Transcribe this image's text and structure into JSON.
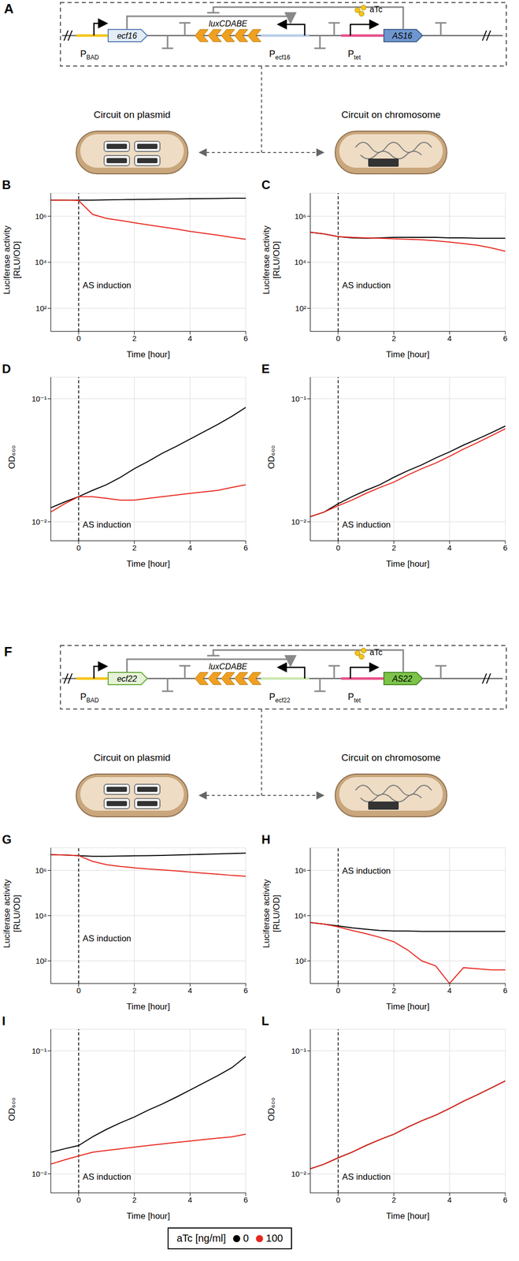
{
  "diagrams": [
    {
      "panel": "A",
      "pbad": [
        "P",
        "BAD"
      ],
      "sigma": "ecf16",
      "reporter": "luxCDABE",
      "psigma": [
        "P",
        "ecf16"
      ],
      "inducer": "aTc",
      "ptet": [
        "P",
        "tet"
      ],
      "anti_sigma": "AS16",
      "left_label": "Circuit on plasmid",
      "right_label": "Circuit on chromosome"
    },
    {
      "panel": "F",
      "pbad": [
        "P",
        "BAD"
      ],
      "sigma": "ecf22",
      "reporter": "luxCDABE",
      "psigma": [
        "P",
        "ecf22"
      ],
      "inducer": "aTc",
      "ptet": [
        "P",
        "tet"
      ],
      "anti_sigma": "AS22",
      "left_label": "Circuit on plasmid",
      "right_label": "Circuit on chromosome"
    }
  ],
  "legend": {
    "title": "aTc [ng/ml]"
  },
  "chart_data": [
    {
      "panel": "B",
      "type": "line",
      "x_label": "Time [hour]",
      "y_label": [
        "Luciferase activity",
        "[RLU/OD]"
      ],
      "log": "y",
      "grid": true,
      "xlim": [
        -1,
        6
      ],
      "xticks": [
        0,
        2,
        4,
        6
      ],
      "ylim": [
        10,
        10000000
      ],
      "yticks": [
        {
          "value": 100,
          "label": "10²"
        },
        {
          "value": 10000,
          "label": "10⁴"
        },
        {
          "value": 1000000,
          "label": "10⁶"
        }
      ],
      "x": [
        -1,
        -0.5,
        0,
        0.5,
        1,
        1.5,
        2,
        2.5,
        3,
        3.5,
        4,
        4.5,
        5,
        5.5,
        6
      ],
      "series": [
        {
          "name": "0",
          "color": "#000000",
          "values": [
            5000000,
            5000000,
            5000000,
            5000000,
            5100000,
            5200000,
            5300000,
            5400000,
            5500000,
            5600000,
            5700000,
            5800000,
            5900000,
            6000000,
            6000000
          ]
        },
        {
          "name": "100",
          "color": "#e8261c",
          "values": [
            5000000,
            5000000,
            4800000,
            1200000,
            800000,
            650000,
            520000,
            420000,
            340000,
            280000,
            220000,
            180000,
            150000,
            120000,
            100000
          ]
        }
      ],
      "annotations": [
        {
          "text": "AS induction",
          "x": 0,
          "y": 1000
        }
      ]
    },
    {
      "panel": "C",
      "type": "line",
      "x_label": "Time [hour]",
      "y_label": [
        "Luciferase activity",
        "[RLU/OD]"
      ],
      "log": "y",
      "grid": true,
      "xlim": [
        -1,
        6
      ],
      "xticks": [
        0,
        2,
        4,
        6
      ],
      "ylim": [
        10,
        10000000
      ],
      "yticks": [
        {
          "value": 100,
          "label": "10²"
        },
        {
          "value": 10000,
          "label": "10⁴"
        },
        {
          "value": 1000000,
          "label": "10⁶"
        }
      ],
      "x": [
        -1,
        -0.5,
        0,
        0.5,
        1,
        1.5,
        2,
        2.5,
        3,
        3.5,
        4,
        4.5,
        5,
        5.5,
        6
      ],
      "series": [
        {
          "name": "0",
          "color": "#000000",
          "values": [
            200000,
            170000,
            130000,
            115000,
            110000,
            115000,
            120000,
            120000,
            120000,
            120000,
            115000,
            115000,
            110000,
            110000,
            110000
          ]
        },
        {
          "name": "100",
          "color": "#e8261c",
          "values": [
            200000,
            170000,
            130000,
            120000,
            115000,
            110000,
            105000,
            100000,
            95000,
            85000,
            75000,
            65000,
            55000,
            42000,
            30000
          ]
        }
      ],
      "annotations": [
        {
          "text": "AS induction",
          "x": 0,
          "y": 1000
        }
      ]
    },
    {
      "panel": "D",
      "type": "line",
      "x_label": "Time [hour]",
      "y_label": [
        "OD₆₀₀"
      ],
      "log": "y",
      "grid": true,
      "xlim": [
        -1,
        6
      ],
      "xticks": [
        0,
        2,
        4,
        6
      ],
      "ylim": [
        0.007,
        0.15
      ],
      "yticks": [
        {
          "value": 0.01,
          "label": "10⁻²"
        },
        {
          "value": 0.1,
          "label": "10⁻¹"
        }
      ],
      "x": [
        -1,
        -0.5,
        0,
        0.5,
        1,
        1.5,
        2,
        2.5,
        3,
        3.5,
        4,
        4.5,
        5,
        5.5,
        6
      ],
      "series": [
        {
          "name": "0",
          "color": "#000000",
          "values": [
            0.013,
            0.0145,
            0.016,
            0.018,
            0.02,
            0.023,
            0.027,
            0.031,
            0.036,
            0.041,
            0.047,
            0.054,
            0.062,
            0.072,
            0.085
          ]
        },
        {
          "name": "100",
          "color": "#e8261c",
          "values": [
            0.012,
            0.014,
            0.016,
            0.016,
            0.0155,
            0.015,
            0.015,
            0.0155,
            0.016,
            0.0165,
            0.017,
            0.0175,
            0.018,
            0.019,
            0.02
          ]
        }
      ],
      "annotations": [
        {
          "text": "AS induction",
          "x": 0,
          "y": 0.0095
        }
      ]
    },
    {
      "panel": "E",
      "type": "line",
      "x_label": "Time [hour]",
      "y_label": [
        "OD₆₀₀"
      ],
      "log": "y",
      "grid": true,
      "xlim": [
        -1,
        6
      ],
      "xticks": [
        0,
        2,
        4,
        6
      ],
      "ylim": [
        0.007,
        0.15
      ],
      "yticks": [
        {
          "value": 0.01,
          "label": "10⁻²"
        },
        {
          "value": 0.1,
          "label": "10⁻¹"
        }
      ],
      "x": [
        -1,
        -0.5,
        0,
        0.5,
        1,
        1.5,
        2,
        2.5,
        3,
        3.5,
        4,
        4.5,
        5,
        5.5,
        6
      ],
      "series": [
        {
          "name": "0",
          "color": "#000000",
          "values": [
            0.011,
            0.012,
            0.014,
            0.016,
            0.018,
            0.02,
            0.023,
            0.026,
            0.029,
            0.033,
            0.037,
            0.042,
            0.047,
            0.053,
            0.06
          ]
        },
        {
          "name": "100",
          "color": "#e8261c",
          "values": [
            0.011,
            0.012,
            0.0135,
            0.015,
            0.017,
            0.019,
            0.021,
            0.024,
            0.027,
            0.03,
            0.034,
            0.039,
            0.044,
            0.05,
            0.057
          ]
        }
      ],
      "annotations": [
        {
          "text": "AS induction",
          "x": 0,
          "y": 0.0095
        }
      ]
    },
    {
      "panel": "G",
      "type": "line",
      "x_label": "Time [hour]",
      "y_label": [
        "Luciferase activity",
        "[RLU/OD]"
      ],
      "log": "y",
      "grid": true,
      "xlim": [
        -1,
        6
      ],
      "xticks": [
        0,
        2,
        4,
        6
      ],
      "ylim": [
        10,
        10000000
      ],
      "yticks": [
        {
          "value": 100,
          "label": "10²"
        },
        {
          "value": 10000,
          "label": "10⁴"
        },
        {
          "value": 1000000,
          "label": "10⁶"
        }
      ],
      "x": [
        -1,
        -0.5,
        0,
        0.5,
        1,
        1.5,
        2,
        2.5,
        3,
        3.5,
        4,
        4.5,
        5,
        5.5,
        6
      ],
      "series": [
        {
          "name": "0",
          "color": "#000000",
          "values": [
            5000000,
            4800000,
            4500000,
            4200000,
            4200000,
            4300000,
            4400000,
            4500000,
            4600000,
            4800000,
            5000000,
            5200000,
            5400000,
            5600000,
            5800000
          ]
        },
        {
          "name": "100",
          "color": "#e8261c",
          "values": [
            5000000,
            4800000,
            4500000,
            2500000,
            1800000,
            1500000,
            1300000,
            1150000,
            1050000,
            950000,
            850000,
            750000,
            680000,
            600000,
            550000
          ]
        }
      ],
      "annotations": [
        {
          "text": "AS induction",
          "x": 0,
          "y": 1000
        }
      ]
    },
    {
      "panel": "H",
      "type": "line",
      "x_label": "Time [hour]",
      "y_label": [
        "Luciferase activity",
        "[RLU/OD]"
      ],
      "log": "y",
      "grid": true,
      "xlim": [
        -1,
        6
      ],
      "xticks": [
        0,
        2,
        4,
        6
      ],
      "ylim": [
        10,
        10000000
      ],
      "yticks": [
        {
          "value": 100,
          "label": "10²"
        },
        {
          "value": 10000,
          "label": "10⁴"
        },
        {
          "value": 1000000,
          "label": "10⁶"
        }
      ],
      "x": [
        -1,
        -0.5,
        0,
        0.5,
        1,
        1.5,
        2,
        2.5,
        3,
        3.5,
        4,
        4.5,
        5,
        5.5,
        6
      ],
      "series": [
        {
          "name": "0",
          "color": "#000000",
          "values": [
            5000,
            4200,
            3500,
            2900,
            2500,
            2200,
            2100,
            2100,
            2000,
            2000,
            2000,
            2000,
            2000,
            2000,
            2000
          ]
        },
        {
          "name": "100",
          "color": "#e8261c",
          "values": [
            5000,
            4200,
            3200,
            2200,
            1600,
            1100,
            700,
            300,
            100,
            60,
            10,
            50,
            45,
            40,
            40
          ]
        }
      ],
      "annotations": [
        {
          "text": "AS induction",
          "x": 0,
          "y": 1000000
        }
      ]
    },
    {
      "panel": "I",
      "type": "line",
      "x_label": "Time [hour]",
      "y_label": [
        "OD₆₀₀"
      ],
      "log": "y",
      "grid": true,
      "xlim": [
        -1,
        6
      ],
      "xticks": [
        0,
        2,
        4,
        6
      ],
      "ylim": [
        0.007,
        0.15
      ],
      "yticks": [
        {
          "value": 0.01,
          "label": "10⁻²"
        },
        {
          "value": 0.1,
          "label": "10⁻¹"
        }
      ],
      "x": [
        -1,
        -0.5,
        0,
        0.5,
        1,
        1.5,
        2,
        2.5,
        3,
        3.5,
        4,
        4.5,
        5,
        5.5,
        6
      ],
      "series": [
        {
          "name": "0",
          "color": "#000000",
          "values": [
            0.015,
            0.016,
            0.017,
            0.02,
            0.023,
            0.026,
            0.029,
            0.033,
            0.037,
            0.042,
            0.048,
            0.055,
            0.063,
            0.073,
            0.09
          ]
        },
        {
          "name": "100",
          "color": "#e8261c",
          "values": [
            0.012,
            0.013,
            0.014,
            0.015,
            0.0155,
            0.016,
            0.0165,
            0.017,
            0.0175,
            0.018,
            0.0185,
            0.019,
            0.0195,
            0.02,
            0.021
          ]
        }
      ],
      "annotations": [
        {
          "text": "AS induction",
          "x": 0,
          "y": 0.0095
        }
      ]
    },
    {
      "panel": "L",
      "type": "line",
      "x_label": "Time [hour]",
      "y_label": [
        "OD₆₀₀"
      ],
      "log": "y",
      "grid": true,
      "xlim": [
        -1,
        6
      ],
      "xticks": [
        0,
        2,
        4,
        6
      ],
      "ylim": [
        0.007,
        0.15
      ],
      "yticks": [
        {
          "value": 0.01,
          "label": "10⁻²"
        },
        {
          "value": 0.1,
          "label": "10⁻¹"
        }
      ],
      "x": [
        -1,
        -0.5,
        0,
        0.5,
        1,
        1.5,
        2,
        2.5,
        3,
        3.5,
        4,
        4.5,
        5,
        5.5,
        6
      ],
      "series": [
        {
          "name": "0",
          "color": "#000000",
          "values": [
            0.011,
            0.012,
            0.0135,
            0.015,
            0.017,
            0.019,
            0.021,
            0.024,
            0.027,
            0.03,
            0.034,
            0.039,
            0.044,
            0.05,
            0.057
          ]
        },
        {
          "name": "100",
          "color": "#e8261c",
          "values": [
            0.011,
            0.012,
            0.0135,
            0.015,
            0.017,
            0.019,
            0.021,
            0.024,
            0.027,
            0.03,
            0.034,
            0.039,
            0.044,
            0.05,
            0.057
          ]
        }
      ],
      "annotations": [
        {
          "text": "AS induction",
          "x": 0,
          "y": 0.0095
        }
      ]
    }
  ]
}
